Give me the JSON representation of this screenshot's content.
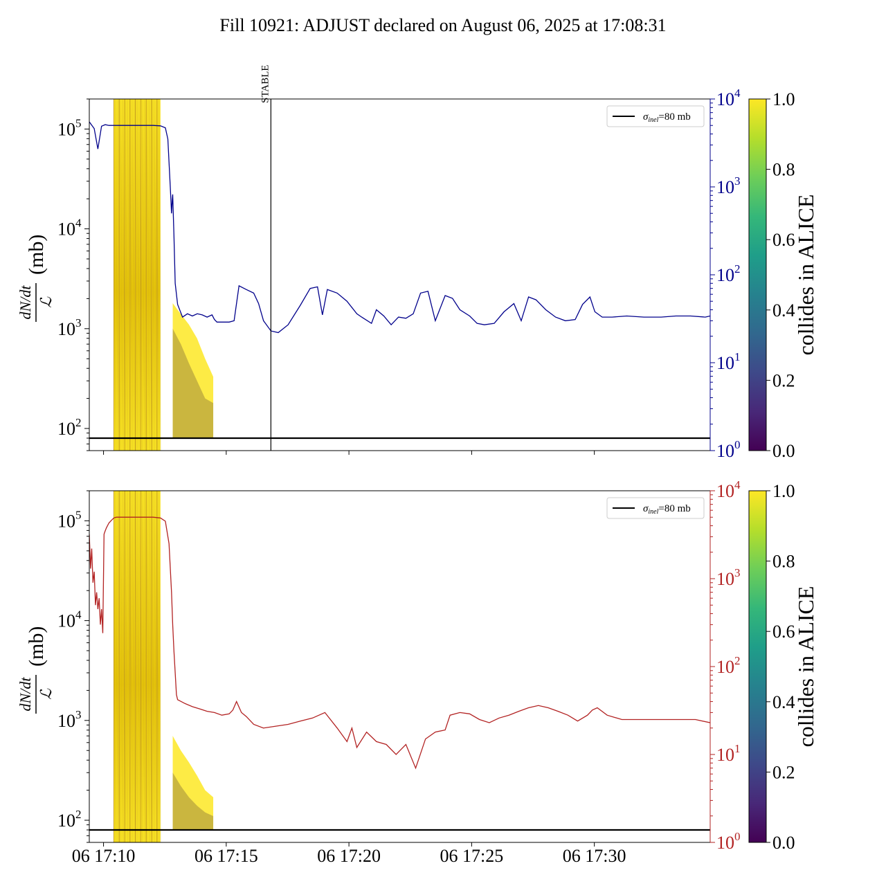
{
  "figure": {
    "title": "Fill 10921: ADJUST declared on August 06, 2025 at 17:08:31"
  },
  "colors": {
    "top_series": "#00008b",
    "bottom_series": "#b22222",
    "reference_line": "#000000",
    "band_low": "#440154",
    "band_high": "#fde725",
    "viridis": [
      "#440154",
      "#482878",
      "#3e4989",
      "#31688e",
      "#26828e",
      "#1f9e89",
      "#35b779",
      "#6ece58",
      "#b5de2b",
      "#fde725"
    ]
  },
  "chart_data": [
    {
      "type": "line",
      "panel": "top",
      "ylabel_fraction": {
        "numerator": "dN/dt",
        "denominator": "ℒ"
      },
      "ylabel_unit": "(mb)",
      "yscale": "log",
      "ylim": [
        60,
        200000
      ],
      "yticks": [
        {
          "base": "10",
          "exp": "2",
          "value": 100
        },
        {
          "base": "10",
          "exp": "3",
          "value": 1000
        },
        {
          "base": "10",
          "exp": "4",
          "value": 10000
        },
        {
          "base": "10",
          "exp": "5",
          "value": 100000
        }
      ],
      "xlim_minutes": [
        -5.1,
        20.2
      ],
      "xtick_minutes": [
        -4.52,
        0.48,
        5.48,
        10.48,
        15.48
      ],
      "right_axis": {
        "scale": "log",
        "ylim": [
          1,
          10000
        ],
        "color": "#00008b",
        "yticks": [
          {
            "base": "10",
            "exp": "0",
            "value": 1
          },
          {
            "base": "10",
            "exp": "1",
            "value": 10
          },
          {
            "base": "10",
            "exp": "2",
            "value": 100
          },
          {
            "base": "10",
            "exp": "3",
            "value": 1000
          },
          {
            "base": "10",
            "exp": "4",
            "value": 10000
          }
        ],
        "series_minutes": [
          -5.1,
          -4.9,
          -4.75,
          -4.6,
          -4.45,
          -4.3,
          -4.15,
          -4.0,
          -3.5,
          -3.0,
          -2.5,
          -2.2,
          -2.0,
          -1.9,
          -1.85,
          -1.8,
          -1.75,
          -1.72,
          -1.7,
          -1.65,
          -1.6,
          -1.5,
          -1.3,
          -1.1,
          -0.9,
          -0.7,
          -0.5,
          -0.3,
          -0.1,
          0.0,
          0.1,
          0.2,
          0.4,
          0.6,
          0.8,
          1.0,
          1.3,
          1.6,
          1.8,
          2.0,
          2.3,
          2.6,
          3.0,
          3.5,
          3.9,
          4.2,
          4.4,
          4.6,
          5.0,
          5.4,
          5.8,
          6.0,
          6.4,
          6.6,
          6.9,
          7.2,
          7.5,
          7.8,
          8.1,
          8.4,
          8.7,
          9.0,
          9.4,
          9.7,
          10.0,
          10.4,
          10.7,
          11.0,
          11.4,
          11.8,
          12.2,
          12.5,
          12.8,
          13.1,
          13.5,
          13.9,
          14.3,
          14.7,
          15.0,
          15.3,
          15.5,
          15.8,
          16.2,
          16.8,
          17.5,
          18.2,
          18.8,
          19.4,
          20.0,
          20.2
        ],
        "series_values": [
          5500,
          4600,
          2700,
          4900,
          5100,
          5000,
          5000,
          5000,
          5000,
          5000,
          5000,
          4950,
          4700,
          3500,
          1900,
          1000,
          500,
          700,
          820,
          280,
          80,
          46,
          33,
          36,
          34,
          36,
          35,
          33,
          35,
          31,
          29,
          29,
          29,
          29,
          30,
          75,
          68,
          62,
          47,
          30,
          23,
          22,
          27,
          45,
          70,
          73,
          35,
          68,
          62,
          50,
          36,
          33,
          28,
          40,
          34,
          27,
          33,
          32,
          36,
          62,
          65,
          30,
          58,
          54,
          40,
          34,
          28,
          27,
          28,
          38,
          47,
          30,
          56,
          52,
          40,
          33,
          30,
          31,
          46,
          56,
          38,
          33,
          33,
          34,
          33,
          33,
          34,
          34,
          33,
          34
        ]
      },
      "reference_line": {
        "label": "σinel=80 mb",
        "label_symbol": "σ",
        "label_sub": "inel",
        "label_rest": "=80 mb",
        "value": 80
      },
      "legend": "top-right",
      "annotation": {
        "text": "STABLE",
        "x_minutes": 2.3
      },
      "band": {
        "segment1_minutes": [
          -4.1,
          -2.2
        ],
        "segment1_range": [
          60,
          200000
        ],
        "segment2_minutes": [
          -1.7,
          -0.05
        ],
        "segment2_top": [
          1800,
          1400,
          1100,
          800,
          500,
          330
        ],
        "segment2_bottom": 80,
        "segment2_mid": [
          1000,
          700,
          450,
          300,
          200,
          180
        ],
        "vlines_minutes": [
          -4.1,
          -3.88,
          -3.66,
          -3.44,
          -3.22,
          -3.0,
          -2.78,
          -2.56,
          -2.34
        ]
      },
      "grid": false
    },
    {
      "type": "line",
      "panel": "bottom",
      "ylabel_fraction": {
        "numerator": "dN/dt",
        "denominator": "ℒ"
      },
      "ylabel_unit": "(mb)",
      "yscale": "log",
      "ylim": [
        60,
        200000
      ],
      "yticks": [
        {
          "base": "10",
          "exp": "2",
          "value": 100
        },
        {
          "base": "10",
          "exp": "3",
          "value": 1000
        },
        {
          "base": "10",
          "exp": "4",
          "value": 10000
        },
        {
          "base": "10",
          "exp": "5",
          "value": 100000
        }
      ],
      "xlim_minutes": [
        -5.1,
        20.2
      ],
      "xtick_minutes": [
        -4.52,
        0.48,
        5.48,
        10.48,
        15.48
      ],
      "xtick_labels": [
        "06 17:10",
        "06 17:15",
        "06 17:20",
        "06 17:25",
        "06 17:30"
      ],
      "right_axis": {
        "scale": "log",
        "ylim": [
          1,
          10000
        ],
        "color": "#b22222",
        "yticks": [
          {
            "base": "10",
            "exp": "0",
            "value": 1
          },
          {
            "base": "10",
            "exp": "1",
            "value": 10
          },
          {
            "base": "10",
            "exp": "2",
            "value": 100
          },
          {
            "base": "10",
            "exp": "3",
            "value": 1000
          },
          {
            "base": "10",
            "exp": "4",
            "value": 10000
          }
        ],
        "series_minutes": [
          -5.1,
          -5.05,
          -5.0,
          -4.95,
          -4.9,
          -4.85,
          -4.8,
          -4.75,
          -4.7,
          -4.65,
          -4.6,
          -4.55,
          -4.5,
          -4.45,
          -4.4,
          -4.3,
          -4.2,
          -4.1,
          -4.0,
          -3.5,
          -3.0,
          -2.5,
          -2.2,
          -2.0,
          -1.85,
          -1.75,
          -1.7,
          -1.65,
          -1.6,
          -1.55,
          -1.5,
          -1.2,
          -0.9,
          -0.6,
          -0.3,
          0.0,
          0.3,
          0.6,
          0.75,
          0.9,
          1.1,
          1.3,
          1.6,
          2.0,
          2.5,
          3.0,
          3.5,
          4.0,
          4.5,
          5.0,
          5.4,
          5.6,
          5.8,
          6.2,
          6.6,
          7.0,
          7.4,
          7.8,
          8.2,
          8.6,
          9.0,
          9.4,
          9.6,
          10.0,
          10.4,
          10.8,
          11.2,
          11.6,
          12.0,
          12.4,
          12.8,
          13.2,
          13.6,
          14.0,
          14.4,
          14.8,
          15.2,
          15.4,
          15.6,
          16.0,
          16.6,
          17.2,
          17.8,
          18.4,
          19.0,
          19.6,
          20.2
        ],
        "series_values": [
          3200,
          1300,
          2200,
          900,
          1200,
          500,
          700,
          450,
          600,
          300,
          450,
          240,
          3200,
          3500,
          3800,
          4300,
          4600,
          4900,
          5000,
          5000,
          5000,
          5000,
          4900,
          4500,
          2500,
          700,
          300,
          150,
          85,
          48,
          42,
          38,
          35,
          33,
          31,
          30,
          28,
          29,
          32,
          40,
          30,
          27,
          22,
          20,
          21,
          22,
          24,
          26,
          30,
          20,
          14,
          20,
          12,
          18,
          14,
          13,
          10,
          13,
          7,
          15,
          18,
          19,
          28,
          30,
          29,
          25,
          23,
          26,
          28,
          31,
          34,
          36,
          34,
          31,
          28,
          24,
          28,
          32,
          34,
          28,
          25,
          25,
          25,
          25,
          25,
          25,
          23
        ]
      },
      "reference_line": {
        "label": "σinel=80 mb",
        "label_symbol": "σ",
        "label_sub": "inel",
        "label_rest": "=80 mb",
        "value": 80
      },
      "legend": "top-right",
      "band": {
        "segment1_minutes": [
          -4.1,
          -2.2
        ],
        "segment1_range": [
          60,
          200000
        ],
        "segment2_minutes": [
          -1.7,
          -0.05
        ],
        "segment2_top": [
          700,
          500,
          380,
          280,
          200,
          170
        ],
        "segment2_bottom": 80,
        "segment2_mid": [
          300,
          220,
          170,
          140,
          120,
          110
        ],
        "vlines_minutes": [
          -4.1,
          -3.88,
          -3.66,
          -3.44,
          -3.22,
          -3.0,
          -2.78,
          -2.56,
          -2.34
        ]
      },
      "grid": false
    }
  ],
  "colorbars": [
    {
      "panel": "top",
      "label": "collides in ALICE",
      "range": [
        0,
        1
      ],
      "ticks": [
        {
          "value": 0,
          "label": "0.0"
        },
        {
          "value": 0.2,
          "label": "0.2"
        },
        {
          "value": 0.4,
          "label": "0.4"
        },
        {
          "value": 0.6,
          "label": "0.6"
        },
        {
          "value": 0.8,
          "label": "0.8"
        },
        {
          "value": 1,
          "label": "1.0"
        }
      ]
    },
    {
      "panel": "bottom",
      "label": "collides in ALICE",
      "range": [
        0,
        1
      ],
      "ticks": [
        {
          "value": 0,
          "label": "0.0"
        },
        {
          "value": 0.2,
          "label": "0.2"
        },
        {
          "value": 0.4,
          "label": "0.4"
        },
        {
          "value": 0.6,
          "label": "0.6"
        },
        {
          "value": 0.8,
          "label": "0.8"
        },
        {
          "value": 1,
          "label": "1.0"
        }
      ]
    }
  ]
}
